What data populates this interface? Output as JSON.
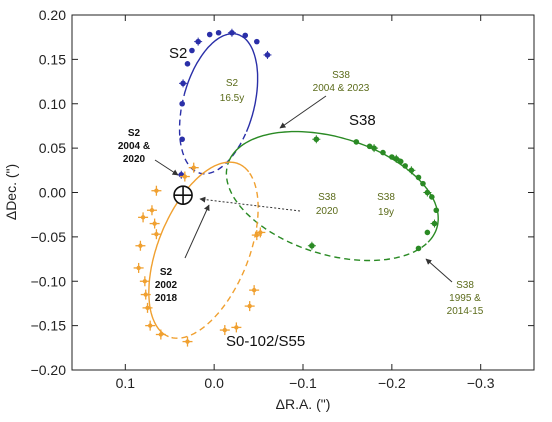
{
  "chart_data": {
    "type": "scatter",
    "xlabel": "ΔR.A. (\")",
    "ylabel": "ΔDec. (\")",
    "xlim": [
      0.16,
      -0.36
    ],
    "ylim": [
      -0.2,
      0.2
    ],
    "xticks": [
      0.1,
      0.0,
      -0.1,
      -0.2,
      -0.3
    ],
    "xtick_labels": [
      "0.1",
      "0.0",
      "−0.1",
      "−0.2",
      "−0.3"
    ],
    "yticks": [
      0.2,
      0.15,
      0.1,
      0.05,
      0.0,
      -0.05,
      -0.1,
      -0.15,
      -0.2
    ],
    "ytick_labels": [
      "0.20",
      "0.15",
      "0.10",
      "0.05",
      "0.00",
      "−0.05",
      "−0.10",
      "−0.15",
      "−0.20"
    ],
    "grid": false,
    "center_marker": {
      "x": 0.035,
      "y": -0.003,
      "symbol": "circle-plus"
    },
    "series": [
      {
        "name": "S2",
        "color": "#2a2fa8",
        "orbit": {
          "cx": -0.005,
          "cy": 0.1,
          "a": 0.04,
          "b": 0.081,
          "theta_deg": 15
        },
        "points": [
          [
            0.037,
            0.02
          ],
          [
            0.036,
            0.06
          ],
          [
            0.036,
            0.1
          ],
          [
            0.035,
            0.123
          ],
          [
            0.03,
            0.145
          ],
          [
            0.025,
            0.16
          ],
          [
            0.018,
            0.17
          ],
          [
            0.005,
            0.178
          ],
          [
            -0.005,
            0.18
          ],
          [
            -0.02,
            0.18
          ],
          [
            -0.035,
            0.177
          ],
          [
            -0.048,
            0.17
          ],
          [
            -0.06,
            0.155
          ]
        ]
      },
      {
        "name": "S38",
        "color": "#2a8a24",
        "orbit": {
          "cx": -0.133,
          "cy": -0.004,
          "a": 0.123,
          "b": 0.066,
          "theta_deg": 17
        },
        "points": [
          [
            -0.115,
            0.06
          ],
          [
            -0.16,
            0.057
          ],
          [
            -0.175,
            0.052
          ],
          [
            -0.18,
            0.05
          ],
          [
            -0.19,
            0.045
          ],
          [
            -0.2,
            0.04
          ],
          [
            -0.205,
            0.038
          ],
          [
            -0.21,
            0.035
          ],
          [
            -0.215,
            0.03
          ],
          [
            -0.222,
            0.025
          ],
          [
            -0.23,
            0.017
          ],
          [
            -0.235,
            0.01
          ],
          [
            -0.24,
            0.0
          ],
          [
            -0.245,
            -0.005
          ],
          [
            -0.25,
            -0.02
          ],
          [
            -0.248,
            -0.035
          ],
          [
            -0.24,
            -0.045
          ],
          [
            -0.23,
            -0.063
          ],
          [
            -0.11,
            -0.06
          ]
        ]
      },
      {
        "name": "S0-102/S55",
        "color": "#f0a030",
        "orbit": {
          "cx": 0.012,
          "cy": -0.065,
          "a": 0.105,
          "b": 0.051,
          "theta_deg": -68
        },
        "points": [
          [
            0.023,
            0.028
          ],
          [
            0.033,
            0.018
          ],
          [
            0.065,
            0.002
          ],
          [
            0.07,
            -0.02
          ],
          [
            0.08,
            -0.028
          ],
          [
            0.067,
            -0.035
          ],
          [
            0.065,
            -0.047
          ],
          [
            0.083,
            -0.06
          ],
          [
            0.085,
            -0.085
          ],
          [
            0.078,
            -0.1
          ],
          [
            0.077,
            -0.115
          ],
          [
            0.075,
            -0.13
          ],
          [
            0.072,
            -0.15
          ],
          [
            0.06,
            -0.16
          ],
          [
            0.03,
            -0.168
          ],
          [
            -0.012,
            -0.155
          ],
          [
            -0.025,
            -0.152
          ],
          [
            -0.04,
            -0.128
          ],
          [
            -0.045,
            -0.11
          ],
          [
            -0.048,
            -0.048
          ],
          [
            -0.052,
            -0.045
          ]
        ]
      }
    ],
    "labels": {
      "s2_name": "S2",
      "s38_name": "S38",
      "s55_name": "S0-102/S55",
      "s2_period_l1": "S2",
      "s2_period_l2": "16.5y",
      "s38_period_l1": "S38",
      "s38_period_l2": "19y",
      "s38_top_l1": "S38",
      "s38_top_l2": "2004 & 2023",
      "s38_2020_l1": "S38",
      "s38_2020_l2": "2020",
      "s38_bottom_l1": "S38",
      "s38_bottom_l2": "1995 &",
      "s38_bottom_l3": "2014-15",
      "s2_left_l1": "S2",
      "s2_left_l2": "2004 &",
      "s2_left_l3": "2020",
      "s2_low_l1": "S2",
      "s2_low_l2": "2002",
      "s2_low_l3": "2018"
    }
  }
}
